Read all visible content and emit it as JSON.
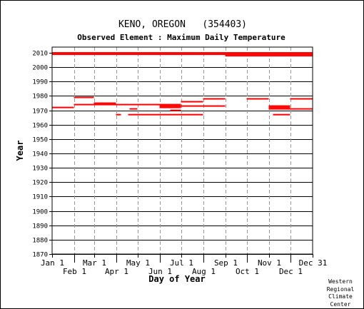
{
  "chart_data": {
    "type": "scatter",
    "title": "KENO, OREGON   (354403)",
    "subtitle": "Observed Element : Maximum Daily Temperature",
    "xlabel": "Day of Year",
    "ylabel": "Year",
    "x_range": [
      1,
      366
    ],
    "ylim": [
      1870,
      2014
    ],
    "grid": "dashed vertical at month starts, solid horizontal at decades",
    "y_ticks": [
      1870,
      1880,
      1890,
      1900,
      1910,
      1920,
      1930,
      1940,
      1950,
      1960,
      1970,
      1980,
      1990,
      2000,
      2010
    ],
    "x_ticks": [
      {
        "label": "Jan 1",
        "day": 1,
        "row": 1
      },
      {
        "label": "Feb 1",
        "day": 32,
        "row": 2
      },
      {
        "label": "Mar 1",
        "day": 60,
        "row": 1
      },
      {
        "label": "Apr 1",
        "day": 91,
        "row": 2
      },
      {
        "label": "May 1",
        "day": 121,
        "row": 1
      },
      {
        "label": "Jun 1",
        "day": 152,
        "row": 2
      },
      {
        "label": "Jul 1",
        "day": 182,
        "row": 1
      },
      {
        "label": "Aug 1",
        "day": 213,
        "row": 2
      },
      {
        "label": "Sep 1",
        "day": 244,
        "row": 1
      },
      {
        "label": "Oct 1",
        "day": 274,
        "row": 2
      },
      {
        "label": "Nov 1",
        "day": 305,
        "row": 1
      },
      {
        "label": "Dec 1",
        "day": 335,
        "row": 2
      },
      {
        "label": "Dec 31",
        "day": 366,
        "row": 1
      }
    ],
    "series": [
      {
        "color": "#ff0000",
        "segments": [
          {
            "year": 1972,
            "start": 1,
            "end": 31
          },
          {
            "year": 1979,
            "start": 32,
            "end": 59
          },
          {
            "year": 1974,
            "start": 32,
            "end": 59
          },
          {
            "year": 1975,
            "start": 60,
            "end": 90
          },
          {
            "year": 1974,
            "start": 60,
            "end": 90
          },
          {
            "year": 1974,
            "start": 91,
            "end": 181
          },
          {
            "year": 1967,
            "start": 91,
            "end": 97
          },
          {
            "year": 1971,
            "start": 110,
            "end": 120
          },
          {
            "year": 1967,
            "start": 108,
            "end": 212
          },
          {
            "year": 1973,
            "start": 152,
            "end": 181
          },
          {
            "year": 1972,
            "start": 152,
            "end": 181
          },
          {
            "year": 1970,
            "start": 167,
            "end": 181
          },
          {
            "year": 1976,
            "start": 182,
            "end": 212
          },
          {
            "year": 1973,
            "start": 182,
            "end": 243
          },
          {
            "year": 1978,
            "start": 213,
            "end": 243
          },
          {
            "year": 1978,
            "start": 274,
            "end": 304
          },
          {
            "year": 1973,
            "start": 305,
            "end": 334
          },
          {
            "year": 1972,
            "start": 305,
            "end": 334
          },
          {
            "year": 1967,
            "start": 311,
            "end": 334
          },
          {
            "year": 1971,
            "start": 305,
            "end": 366
          },
          {
            "year": 1978,
            "start": 335,
            "end": 366
          },
          {
            "year": 2010,
            "start": 1,
            "end": 366
          },
          {
            "year": 2009,
            "start": 1,
            "end": 366
          },
          {
            "year": 2008,
            "start": 244,
            "end": 366
          }
        ]
      }
    ]
  },
  "credit": [
    "Western",
    "Regional",
    "Climate",
    "Center"
  ]
}
